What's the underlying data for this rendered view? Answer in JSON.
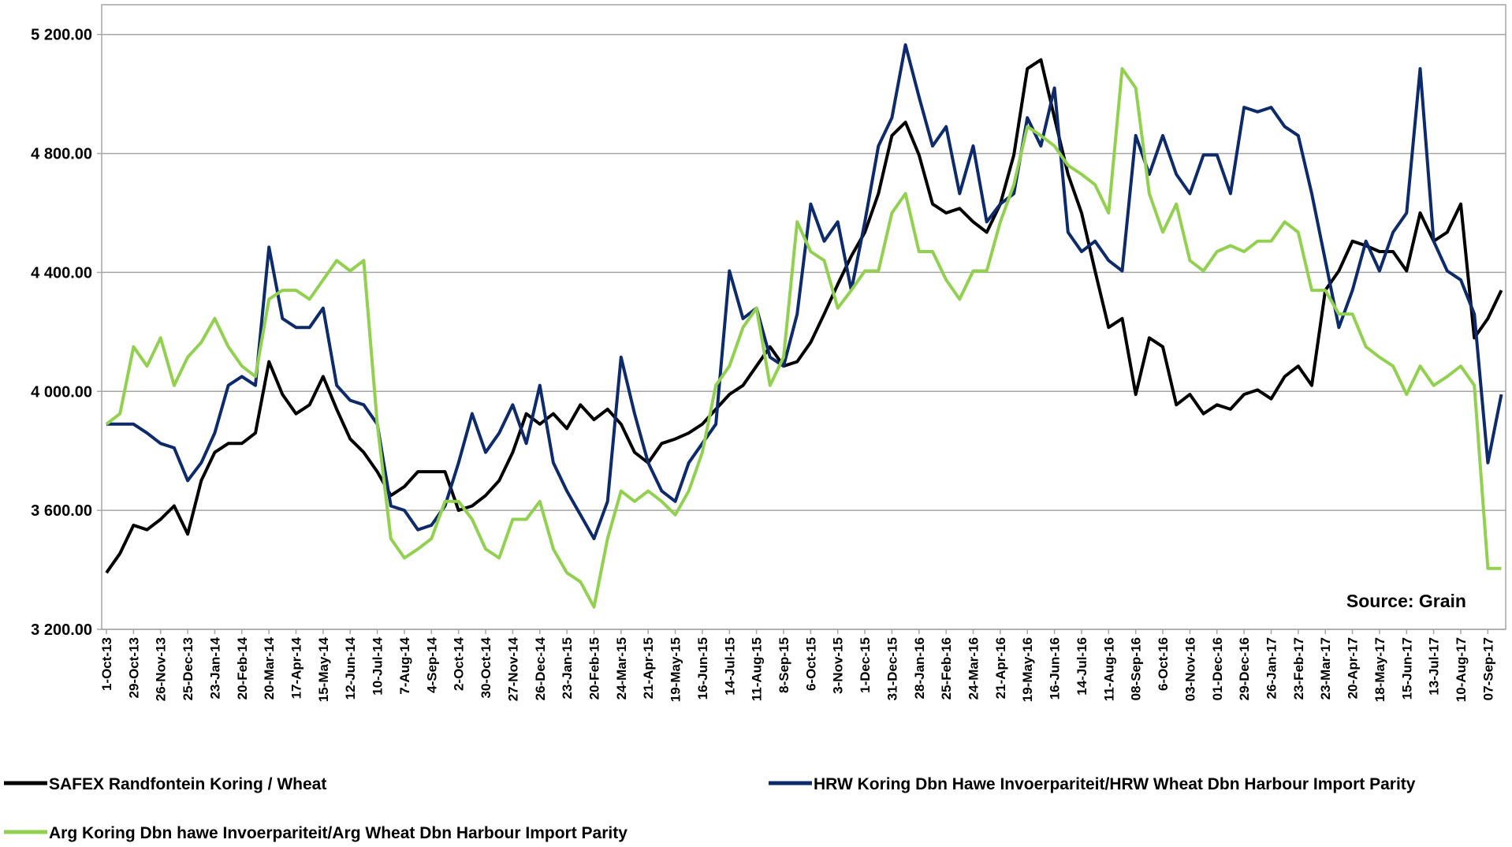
{
  "chart_data": {
    "type": "line",
    "categories": [
      "1-Oct-13",
      null,
      "29-Oct-13",
      null,
      "26-Nov-13",
      null,
      "25-Dec-13",
      null,
      "23-Jan-14",
      null,
      "20-Feb-14",
      null,
      "20-Mar-14",
      null,
      "17-Apr-14",
      null,
      "15-May-14",
      null,
      "12-Jun-14",
      null,
      "10-Jul-14",
      null,
      "7-Aug-14",
      null,
      "4-Sep-14",
      null,
      "2-Oct-14",
      null,
      "30-Oct-14",
      null,
      "27-Nov-14",
      null,
      "26-Dec-14",
      null,
      "23-Jan-15",
      null,
      "20-Feb-15",
      null,
      "24-Mar-15",
      null,
      "21-Apr-15",
      null,
      "19-May-15",
      null,
      "16-Jun-15",
      null,
      "14-Jul-15",
      null,
      "11-Aug-15",
      null,
      "8-Sep-15",
      null,
      "6-Oct-15",
      null,
      "3-Nov-15",
      null,
      "1-Dec-15",
      null,
      "31-Dec-15",
      null,
      "28-Jan-16",
      null,
      "25-Feb-16",
      null,
      "24-Mar-16",
      null,
      "21-Apr-16",
      null,
      "19-May-16",
      null,
      "16-Jun-16",
      null,
      "14-Jul-16",
      null,
      "11-Aug-16",
      null,
      "08-Sep-16",
      null,
      "6-Oct-16",
      null,
      "03-Nov-16",
      null,
      "01-Dec-16",
      null,
      "29-Dec-16",
      null,
      "26-Jan-17",
      null,
      "23-Feb-17",
      null,
      "23-Mar-17",
      null,
      "20-Apr-17",
      null,
      "18-May-17",
      null,
      "15-Jun-17",
      null,
      "13-Jul-17",
      null,
      "10-Aug-17",
      null,
      "07-Sep-17",
      null
    ],
    "series": [
      {
        "name": "SAFEX  Randfontein Koring / Wheat",
        "color": "#000000",
        "values": [
          3390,
          3455,
          3550,
          3535,
          3570,
          3615,
          3520,
          3700,
          3795,
          3825,
          3825,
          3860,
          4100,
          3990,
          3925,
          3955,
          4050,
          3940,
          3840,
          3795,
          3730,
          3650,
          3680,
          3730,
          3730,
          3730,
          3600,
          3615,
          3650,
          3700,
          3795,
          3925,
          3890,
          3925,
          3875,
          3955,
          3905,
          3940,
          3890,
          3795,
          3760,
          3825,
          3840,
          3860,
          3890,
          3940,
          3990,
          4020,
          4085,
          4150,
          4085,
          4100,
          4165,
          4260,
          4360,
          4455,
          4535,
          4665,
          4860,
          4905,
          4795,
          4630,
          4600,
          4615,
          4570,
          4535,
          4630,
          4795,
          5085,
          5115,
          4920,
          4730,
          4600,
          4405,
          4215,
          4245,
          3990,
          4180,
          4150,
          3955,
          3990,
          3925,
          3955,
          3940,
          3990,
          4005,
          3975,
          4050,
          4085,
          4020,
          4340,
          4405,
          4505,
          4490,
          4470,
          4470,
          4405,
          4600,
          4505,
          4535,
          4630,
          4180,
          4245,
          4340
        ]
      },
      {
        "name": "HRW Koring Dbn Hawe Invoerpariteit/HRW Wheat Dbn Harbour Import Parity",
        "color": "#0d2a6b",
        "values": [
          3890,
          3890,
          3890,
          3860,
          3825,
          3810,
          3700,
          3760,
          3860,
          4020,
          4050,
          4020,
          4485,
          4245,
          4215,
          4215,
          4280,
          4020,
          3970,
          3955,
          3890,
          3615,
          3600,
          3535,
          3550,
          3615,
          3760,
          3925,
          3795,
          3860,
          3955,
          3825,
          4020,
          3760,
          3665,
          3585,
          3505,
          3630,
          4115,
          3925,
          3760,
          3665,
          3630,
          3760,
          3825,
          3890,
          4405,
          4245,
          4280,
          4115,
          4085,
          4260,
          4630,
          4505,
          4570,
          4340,
          4570,
          4825,
          4920,
          5165,
          4990,
          4825,
          4890,
          4665,
          4825,
          4570,
          4630,
          4665,
          4920,
          4825,
          5020,
          4535,
          4470,
          4505,
          4440,
          4405,
          4860,
          4730,
          4860,
          4730,
          4665,
          4795,
          4795,
          4665,
          4955,
          4940,
          4955,
          4890,
          4860,
          4665,
          4440,
          4215,
          4340,
          4505,
          4405,
          4535,
          4600,
          5085,
          4505,
          4405,
          4375,
          4260,
          3760,
          3990
        ]
      },
      {
        "name": "Arg Koring Dbn hawe Invoerpariteit/Arg Wheat Dbn Harbour Import Parity",
        "color": "#92d050",
        "values": [
          3890,
          3925,
          4150,
          4085,
          4180,
          4020,
          4115,
          4165,
          4245,
          4150,
          4085,
          4050,
          4310,
          4340,
          4340,
          4310,
          4375,
          4440,
          4405,
          4440,
          3890,
          3505,
          3440,
          3470,
          3505,
          3630,
          3630,
          3570,
          3470,
          3440,
          3570,
          3570,
          3630,
          3470,
          3390,
          3360,
          3275,
          3505,
          3665,
          3630,
          3665,
          3630,
          3585,
          3665,
          3795,
          4020,
          4085,
          4215,
          4280,
          4020,
          4115,
          4570,
          4470,
          4440,
          4280,
          4340,
          4405,
          4405,
          4600,
          4665,
          4470,
          4470,
          4375,
          4310,
          4405,
          4405,
          4570,
          4695,
          4890,
          4860,
          4825,
          4760,
          4730,
          4695,
          4600,
          5085,
          5020,
          4665,
          4535,
          4630,
          4440,
          4405,
          4470,
          4490,
          4470,
          4505,
          4505,
          4570,
          4535,
          4340,
          4340,
          4260,
          4260,
          4150,
          4115,
          4085,
          3990,
          4085,
          4020,
          4050,
          4085,
          4020,
          3405,
          3405
        ]
      }
    ],
    "ylim": [
      3200,
      5300
    ],
    "yticks": [
      {
        "value": 3200,
        "label": "3 200.00"
      },
      {
        "value": 3600,
        "label": "3 600.00"
      },
      {
        "value": 4000,
        "label": "4 000.00"
      },
      {
        "value": 4400,
        "label": "4 400.00"
      },
      {
        "value": 4800,
        "label": "4 800.00"
      },
      {
        "value": 5200,
        "label": "5 200.00"
      }
    ],
    "grid": true,
    "annotation": "Source: Grain"
  }
}
